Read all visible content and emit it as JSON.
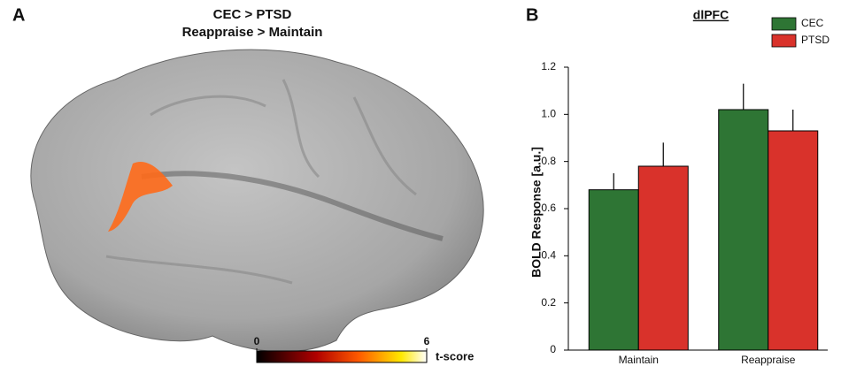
{
  "panel_a": {
    "label": "A",
    "title": "CEC > PTSD",
    "subtitle": "Reappraise > Maintain",
    "colorbar": {
      "label": "t-score",
      "lim": [
        0,
        6
      ],
      "ticks": [
        0,
        6
      ]
    }
  },
  "chart_data": {
    "type": "bar",
    "panel_label": "B",
    "title": "dlPFC",
    "y_label": "BOLD Response [a.u.]",
    "categories": [
      "Maintain",
      "Reappraise"
    ],
    "series": [
      {
        "name": "CEC",
        "color": "#2e7534",
        "values": [
          0.68,
          1.02
        ],
        "errors": [
          0.07,
          0.11
        ]
      },
      {
        "name": "PTSD",
        "color": "#d9322b",
        "values": [
          0.78,
          0.93
        ],
        "errors": [
          0.1,
          0.09
        ]
      }
    ],
    "ylim": [
      0,
      1.2
    ],
    "yticks": [
      0,
      0.2,
      0.4,
      0.6,
      0.8,
      {
        "value": 1,
        "label": "1.0"
      },
      1.2
    ],
    "legend": "top-right",
    "grid": false
  }
}
